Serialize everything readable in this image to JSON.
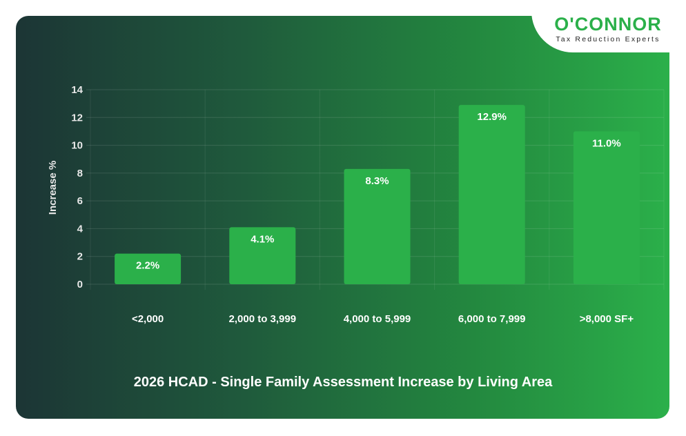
{
  "logo": {
    "name": "O'CONNOR",
    "tagline": "Tax Reduction Experts"
  },
  "colors": {
    "bar": "#2bb04a",
    "logo": "#2bb04a"
  },
  "chart_data": {
    "type": "bar",
    "title": "2026 HCAD - Single Family Assessment Increase by Living Area",
    "xlabel": "",
    "ylabel": "Increase %",
    "categories": [
      "<2,000",
      "2,000 to 3,999",
      "4,000 to 5,999",
      "6,000 to 7,999",
      ">8,000 SF+"
    ],
    "values": [
      2.2,
      4.1,
      8.3,
      12.9,
      11.0
    ],
    "data_labels": [
      "2.2%",
      "4.1%",
      "8.3%",
      "12.9%",
      "11.0%"
    ],
    "ylim": [
      0,
      14
    ],
    "yticks": [
      0,
      2,
      4,
      6,
      8,
      10,
      12,
      14
    ],
    "grid": true,
    "legend": "none"
  }
}
